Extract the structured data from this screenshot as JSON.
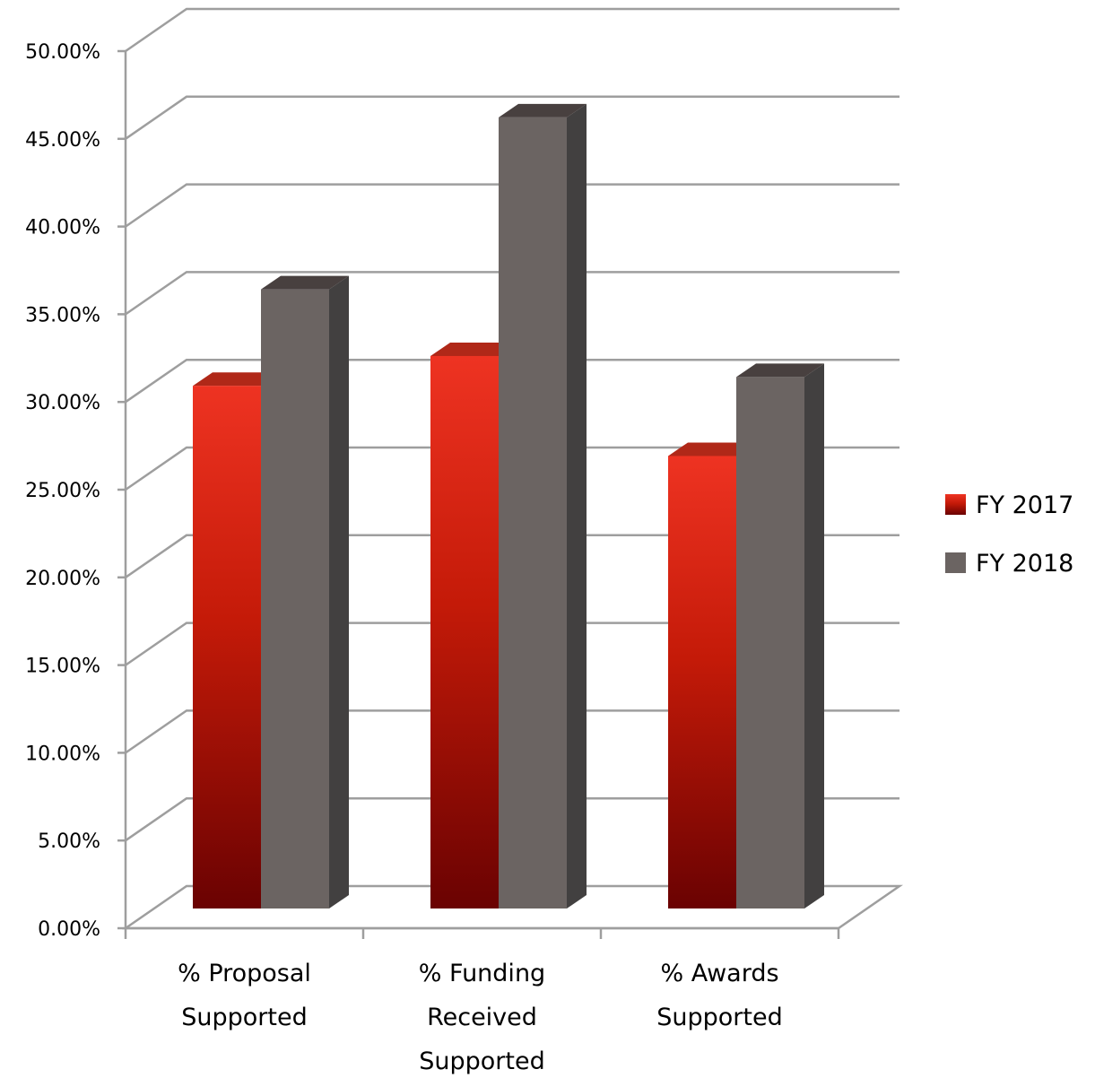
{
  "chart_data": {
    "type": "bar",
    "title": "",
    "xlabel": "",
    "ylabel": "",
    "ylim": [
      0,
      50
    ],
    "y_tick_step": 5,
    "y_tick_labels": [
      "0.00%",
      "5.00%",
      "10.00%",
      "15.00%",
      "20.00%",
      "25.00%",
      "30.00%",
      "35.00%",
      "40.00%",
      "45.00%",
      "50.00%"
    ],
    "categories": [
      [
        "% Proposal",
        "Supported"
      ],
      [
        "% Funding",
        "Received",
        "Supported"
      ],
      [
        "% Awards",
        "Supported"
      ]
    ],
    "series": [
      {
        "name": "FY 2017",
        "values": [
          30.0,
          31.7,
          26.0
        ],
        "color": "#c81e0a"
      },
      {
        "name": "FY 2018",
        "values": [
          35.5,
          45.3,
          30.5
        ],
        "color": "#6b6462"
      }
    ],
    "grid": true,
    "three_d": true,
    "legend_position": "right"
  }
}
